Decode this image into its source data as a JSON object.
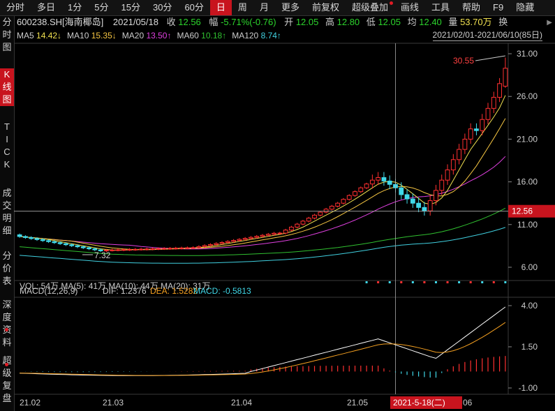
{
  "tabs": [
    "分时",
    "多日",
    "1分",
    "5分",
    "15分",
    "30分",
    "60分",
    "日",
    "周",
    "月",
    "更多",
    "前复权",
    "超级叠加",
    "画线",
    "工具",
    "帮助",
    "F9",
    "隐藏"
  ],
  "active_tab": "日",
  "side_tabs": [
    "分时图",
    "K线图",
    "TICK",
    "成交明细",
    "分价表",
    "深度资料",
    "超级复盘"
  ],
  "info": {
    "code": "600238.SH[海南椰岛]",
    "date": "2021/05/18",
    "close_label": "收",
    "close": "12.56",
    "change_label": "幅",
    "change": "-5.71%(-0.76)",
    "open_label": "开",
    "open": "12.05",
    "high_label": "高",
    "high": "12.80",
    "low_label": "低",
    "low": "12.05",
    "avg_label": "均",
    "avg": "12.40",
    "vol_label": "量",
    "vol": "53.70万",
    "swap_label": "换"
  },
  "ma": [
    {
      "name": "MA5",
      "value": "14.42↓",
      "color": "#f0e050"
    },
    {
      "name": "MA10",
      "value": "15.35↓",
      "color": "#f5c542"
    },
    {
      "name": "MA20",
      "value": "13.50↑",
      "color": "#e040e0"
    },
    {
      "name": "MA60",
      "value": "10.18↑",
      "color": "#30c030"
    },
    {
      "name": "MA120",
      "value": "8.74↑",
      "color": "#40d0e0"
    }
  ],
  "range_label": "2021/02/01-2021/06/10(85日)",
  "chart_data": {
    "type": "candlestick",
    "price_axis": [
      "31.00",
      "26.00",
      "21.00",
      "16.00",
      "11.00",
      "6.00"
    ],
    "macd_axis": [
      "4.00",
      "1.50",
      "-1.00"
    ],
    "x_labels": [
      "21.02",
      "21.03",
      "21.04",
      "21.05",
      "06"
    ],
    "cursor_label": "2021-5-18(二)",
    "current_price_label": "12.56",
    "max_label": "30.55",
    "min_label": "7.32",
    "volume_text": "VOL: 54万  MA(5): 41万  MA(10): 44万  MA(20): 31万",
    "macd_text": {
      "title": "MACD(12,26,9)",
      "dif": "DIF: 1.2376",
      "dea": "DEA: 1.5282",
      "macd": "MACD: -0.5813"
    }
  }
}
